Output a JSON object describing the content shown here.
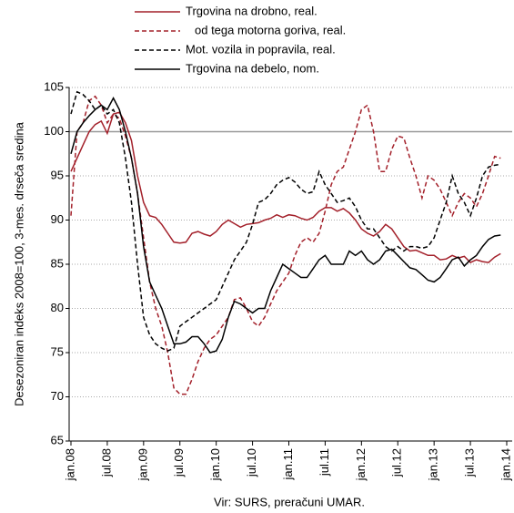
{
  "chart_data": {
    "type": "line",
    "ylabel": "Desezoniran indeks 2008=100, 3-mes. drseča sredina",
    "caption": "Vir: SURS, preračuni UMAR.",
    "categories": [
      "jan.08",
      null,
      null,
      null,
      null,
      null,
      "jul.08",
      null,
      null,
      null,
      null,
      null,
      "jan.09",
      null,
      null,
      null,
      null,
      null,
      "jul.09",
      null,
      null,
      null,
      null,
      null,
      "jan.10",
      null,
      null,
      null,
      null,
      null,
      "jul.10",
      null,
      null,
      null,
      null,
      null,
      "jan.11",
      null,
      null,
      null,
      null,
      null,
      "jul.11",
      null,
      null,
      null,
      null,
      null,
      "jan.12",
      null,
      null,
      null,
      null,
      null,
      "jul.12",
      null,
      null,
      null,
      null,
      null,
      "jan.13",
      null,
      null,
      null,
      null,
      null,
      "jul.13",
      null,
      null,
      null,
      null,
      null,
      "jan.14"
    ],
    "ylim": [
      65,
      105
    ],
    "yticks": [
      65,
      70,
      75,
      80,
      85,
      90,
      95,
      100,
      105
    ],
    "grid": true,
    "reference_line": 100,
    "series": [
      {
        "name": "Trgovina na drobno, real.",
        "color": "#a3202a",
        "dashed": false,
        "values": [
          95.5,
          97,
          98.5,
          100,
          100.8,
          101.2,
          99.8,
          102,
          102.2,
          101,
          99,
          95,
          92,
          90.5,
          90.3,
          89.5,
          88.5,
          87.5,
          87.4,
          87.5,
          88.5,
          88.7,
          88.4,
          88.2,
          88.7,
          89.5,
          90,
          89.6,
          89.2,
          89.5,
          89.6,
          89.7,
          90,
          90.2,
          90.6,
          90.3,
          90.6,
          90.5,
          90.2,
          90,
          90.3,
          91,
          91.4,
          91.4,
          91,
          91.3,
          90.8,
          90,
          89,
          88.5,
          88.2,
          88.7,
          89.5,
          89,
          88,
          87,
          86.5,
          86.6,
          86.3,
          86,
          86,
          85.5,
          85.6,
          86,
          85.7,
          85.9,
          85.2,
          85.5,
          85.3,
          85.2,
          85.8,
          86.2,
          null
        ]
      },
      {
        "name": "od tega motorna goriva, real.",
        "color": "#a3202a",
        "dashed": true,
        "values": [
          90.5,
          100,
          101,
          103.5,
          104,
          103,
          101,
          102,
          101.5,
          99.5,
          97,
          93,
          88,
          83,
          80,
          78,
          75,
          71,
          70.3,
          70.3,
          72,
          74,
          75.5,
          76.5,
          77,
          78,
          79,
          81,
          81.2,
          80,
          78.5,
          78,
          79,
          80.5,
          82,
          83,
          84,
          86,
          87.5,
          88,
          87.5,
          88.5,
          91,
          94,
          95.5,
          96,
          98,
          100,
          102.5,
          103,
          100,
          95.5,
          95.5,
          98,
          99.5,
          99.3,
          97,
          95,
          92.5,
          95,
          94.5,
          93.5,
          92,
          90.5,
          92,
          93,
          92.5,
          91.5,
          93,
          95,
          97.2,
          97,
          null
        ]
      },
      {
        "name": "Mot. vozila in popravila, real.",
        "color": "#000000",
        "dashed": true,
        "values": [
          102,
          104.5,
          104.2,
          103.5,
          102.5,
          103,
          102,
          102.5,
          101,
          97,
          92,
          85,
          79,
          77,
          76,
          75.5,
          75.2,
          75.5,
          78,
          78.5,
          79,
          79.5,
          80,
          80.5,
          81,
          82.5,
          84,
          85.5,
          86.5,
          87.5,
          89.5,
          92,
          92.3,
          93,
          94,
          94.5,
          94.8,
          94.3,
          93.5,
          93,
          93.2,
          95.5,
          94,
          93,
          92,
          92.2,
          92.5,
          91.5,
          90,
          89,
          89,
          88,
          87,
          86.5,
          87,
          86.5,
          87,
          87,
          86.8,
          87,
          88,
          90,
          92,
          95,
          93,
          92,
          90.5,
          92.5,
          95,
          96,
          96.2,
          96.3,
          null
        ]
      },
      {
        "name": "Trgovina na debelo, nom.",
        "color": "#000000",
        "dashed": false,
        "values": [
          97.5,
          100,
          101,
          101.8,
          102.5,
          103,
          102.5,
          103.8,
          102.5,
          100,
          97,
          93,
          87,
          83,
          81.5,
          80,
          78,
          76,
          76,
          76.2,
          76.8,
          76.8,
          76,
          75,
          75.2,
          76.5,
          79,
          80.8,
          80.5,
          80,
          79.5,
          80,
          80,
          82,
          83.5,
          85,
          84.5,
          84,
          83.5,
          83.5,
          84.5,
          85.5,
          86,
          85,
          85,
          85,
          86.5,
          86,
          86.5,
          85.5,
          85,
          85.5,
          86.5,
          86.7,
          86,
          85.3,
          84.6,
          84.4,
          83.8,
          83.2,
          83,
          83.5,
          84.5,
          85.5,
          85.8,
          84.8,
          85.5,
          86,
          87,
          87.8,
          88.2,
          88.3,
          null
        ]
      }
    ]
  }
}
